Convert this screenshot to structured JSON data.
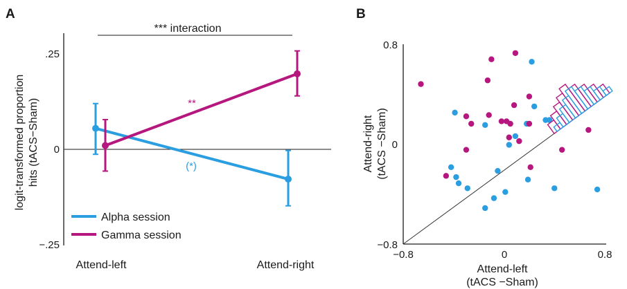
{
  "colors": {
    "alpha": "#2a9ee0",
    "gamma": "#b5177f",
    "axis": "#1a1a1a",
    "diag": "#333333"
  },
  "chart_data": [
    {
      "panel_label": "A",
      "type": "line",
      "categories": [
        "Attend-left",
        "Attend-right"
      ],
      "ylabel_line1": "logit-transformed proportion",
      "ylabel_line2": "hits (tACS−Sham)",
      "ylim": [
        -0.25,
        0.3
      ],
      "yticks": [
        0.25,
        0,
        -0.25
      ],
      "ytick_labels": [
        ".25",
        "0",
        "−.25"
      ],
      "legend_placement": "bottom-left",
      "series": [
        {
          "name": "Alpha session",
          "values": [
            0.055,
            -0.078
          ],
          "err_low": [
            -0.013,
            -0.148
          ],
          "err_high": [
            0.12,
            -0.003
          ]
        },
        {
          "name": "Gamma session",
          "values": [
            0.01,
            0.198
          ],
          "err_low": [
            -0.057,
            0.14
          ],
          "err_high": [
            0.078,
            0.258
          ]
        }
      ],
      "annotations": {
        "interaction": "*** interaction",
        "gamma_sig": "**",
        "alpha_sig": "(*)"
      }
    },
    {
      "panel_label": "B",
      "type": "scatter",
      "xlabel_line1": "Attend-left",
      "xlabel_line2": "(tACS −Sham)",
      "ylabel_line1": "Attend-right",
      "ylabel_line2": "(tACS −Sham)",
      "xlim": [
        -0.8,
        0.8
      ],
      "ylim": [
        -0.8,
        0.8
      ],
      "xtick_labels": [
        "−0.8",
        "0",
        "0.8"
      ],
      "ytick_labels": [
        "0.8",
        "0",
        "−0.8"
      ],
      "series": [
        {
          "name": "Alpha session",
          "points": [
            [
              0.22,
              0.67
            ],
            [
              -0.39,
              0.26
            ],
            [
              0.24,
              0.31
            ],
            [
              0.33,
              0.2
            ],
            [
              0.36,
              0.2
            ],
            [
              0.18,
              0.17
            ],
            [
              -0.15,
              0.16
            ],
            [
              0.09,
              0.07
            ],
            [
              0.04,
              0.0
            ],
            [
              -0.05,
              -0.21
            ],
            [
              -0.42,
              -0.18
            ],
            [
              -0.38,
              -0.26
            ],
            [
              -0.36,
              -0.31
            ],
            [
              0.19,
              -0.28
            ],
            [
              -0.29,
              -0.35
            ],
            [
              0.4,
              -0.35
            ],
            [
              0.74,
              -0.36
            ],
            [
              0.01,
              -0.38
            ],
            [
              -0.08,
              -0.43
            ],
            [
              -0.15,
              -0.51
            ]
          ]
        },
        {
          "name": "Gamma session",
          "points": [
            [
              0.09,
              0.74
            ],
            [
              -0.66,
              0.49
            ],
            [
              -0.1,
              0.69
            ],
            [
              -0.13,
              0.52
            ],
            [
              0.2,
              0.39
            ],
            [
              0.08,
              0.32
            ],
            [
              -0.3,
              0.23
            ],
            [
              -0.12,
              0.24
            ],
            [
              -0.26,
              0.17
            ],
            [
              -0.02,
              0.19
            ],
            [
              0.02,
              0.19
            ],
            [
              0.05,
              0.17
            ],
            [
              0.2,
              0.17
            ],
            [
              0.67,
              0.12
            ],
            [
              0.04,
              0.06
            ],
            [
              0.12,
              0.03
            ],
            [
              -0.3,
              -0.04
            ],
            [
              0.46,
              -0.04
            ],
            [
              0.21,
              -0.18
            ],
            [
              -0.46,
              -0.25
            ]
          ]
        }
      ],
      "histogram": {
        "alpha_counts": [
          1,
          2,
          3,
          4,
          5,
          4,
          3,
          2,
          1
        ],
        "gamma_counts": [
          2,
          3,
          4,
          5,
          6,
          5,
          4,
          3,
          2
        ]
      }
    }
  ]
}
